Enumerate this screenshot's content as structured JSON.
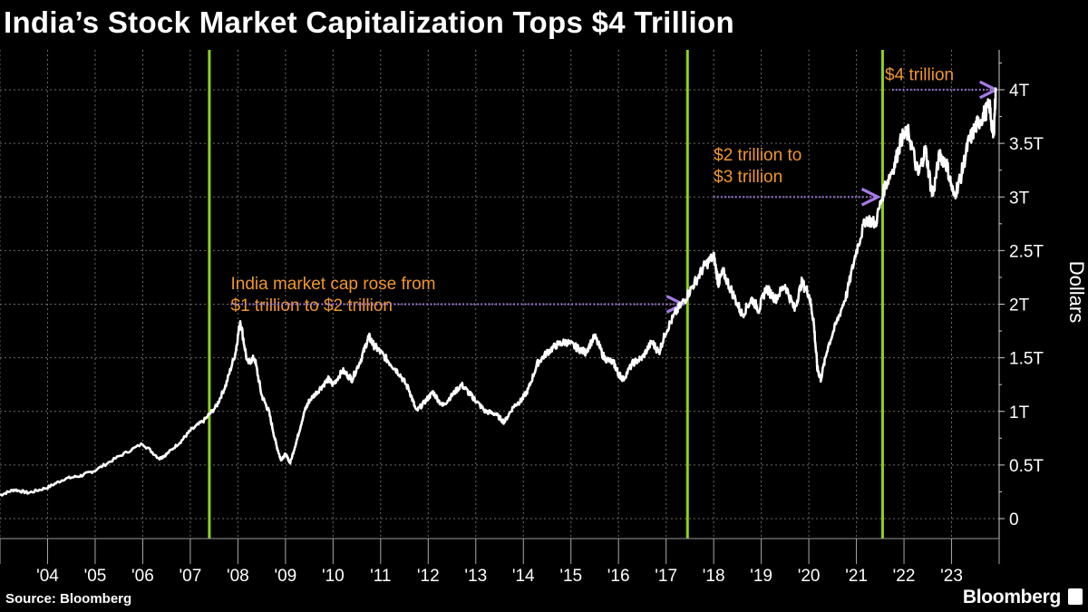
{
  "title": "India’s Stock Market Capitalization Tops $4 Trillion",
  "source": "Source: Bloomberg",
  "brand": "Bloomberg",
  "colors": {
    "line": "#ffffff",
    "milestone": "#8cd21e",
    "annotation": "#f0962d",
    "arrow": "#a57be6",
    "grid": "#6a6a6a"
  },
  "chart_data": {
    "type": "line",
    "title": "India’s Stock Market Capitalization Tops $4 Trillion",
    "ylabel": "Dollars",
    "xlabel": "",
    "ylim": [
      0,
      4.3
    ],
    "yticks": [
      0,
      0.5,
      1,
      1.5,
      2,
      2.5,
      3,
      3.5,
      4
    ],
    "ytick_labels": [
      "0",
      "0.5T",
      "1T",
      "1.5T",
      "2T",
      "2.5T",
      "3T",
      "3.5T",
      "4T"
    ],
    "xlim": [
      2003.0,
      2024.0
    ],
    "xtick_labels": [
      "'04",
      "'05",
      "'06",
      "'07",
      "'08",
      "'09",
      "'10",
      "'11",
      "'12",
      "'13",
      "'14",
      "'15",
      "'16",
      "'17",
      "'18",
      "'19",
      "'20",
      "'21",
      "'22",
      "'23"
    ],
    "grid": true,
    "series": [
      {
        "unit": "trillion USD",
        "x": [
          2003.0,
          2003.3,
          2003.6,
          2004.0,
          2004.35,
          2004.7,
          2005.0,
          2005.5,
          2006.0,
          2006.35,
          2006.5,
          2006.8,
          2007.0,
          2007.3,
          2007.55,
          2007.75,
          2007.95,
          2008.05,
          2008.2,
          2008.35,
          2008.5,
          2008.65,
          2008.8,
          2008.9,
          2009.0,
          2009.1,
          2009.25,
          2009.4,
          2009.5,
          2009.7,
          2009.9,
          2010.0,
          2010.2,
          2010.4,
          2010.6,
          2010.75,
          2010.85,
          2011.0,
          2011.2,
          2011.4,
          2011.6,
          2011.75,
          2011.95,
          2012.1,
          2012.3,
          2012.5,
          2012.7,
          2012.9,
          2013.0,
          2013.2,
          2013.4,
          2013.6,
          2013.8,
          2013.95,
          2014.1,
          2014.3,
          2014.5,
          2014.7,
          2014.9,
          2015.1,
          2015.3,
          2015.5,
          2015.7,
          2015.9,
          2016.0,
          2016.1,
          2016.3,
          2016.5,
          2016.7,
          2016.85,
          2017.0,
          2017.2,
          2017.4,
          2017.6,
          2017.8,
          2018.0,
          2018.1,
          2018.2,
          2018.4,
          2018.6,
          2018.8,
          2018.95,
          2019.1,
          2019.3,
          2019.5,
          2019.7,
          2019.85,
          2020.0,
          2020.1,
          2020.18,
          2020.25,
          2020.4,
          2020.6,
          2020.8,
          2021.0,
          2021.2,
          2021.4,
          2021.6,
          2021.8,
          2021.95,
          2022.1,
          2022.3,
          2022.45,
          2022.6,
          2022.75,
          2022.9,
          2023.05,
          2023.2,
          2023.35,
          2023.5,
          2023.65,
          2023.8,
          2023.88,
          2023.93
        ],
        "values": [
          0.22,
          0.27,
          0.24,
          0.29,
          0.37,
          0.4,
          0.45,
          0.58,
          0.7,
          0.56,
          0.6,
          0.72,
          0.82,
          0.92,
          1.05,
          1.25,
          1.55,
          1.85,
          1.45,
          1.5,
          1.15,
          1.0,
          0.7,
          0.55,
          0.6,
          0.52,
          0.75,
          1.0,
          1.1,
          1.2,
          1.3,
          1.25,
          1.38,
          1.3,
          1.5,
          1.7,
          1.62,
          1.55,
          1.45,
          1.35,
          1.2,
          1.0,
          1.1,
          1.18,
          1.05,
          1.15,
          1.25,
          1.15,
          1.1,
          1.0,
          0.98,
          0.9,
          1.05,
          1.1,
          1.2,
          1.45,
          1.55,
          1.62,
          1.65,
          1.6,
          1.55,
          1.7,
          1.5,
          1.45,
          1.35,
          1.3,
          1.45,
          1.5,
          1.65,
          1.55,
          1.75,
          1.92,
          2.05,
          2.2,
          2.35,
          2.45,
          2.2,
          2.3,
          2.1,
          1.9,
          2.05,
          1.95,
          2.15,
          2.05,
          2.18,
          1.95,
          2.2,
          2.1,
          1.85,
          1.4,
          1.3,
          1.6,
          1.85,
          2.1,
          2.5,
          2.8,
          2.75,
          3.1,
          3.3,
          3.55,
          3.6,
          3.2,
          3.45,
          3.0,
          3.4,
          3.3,
          3.0,
          3.2,
          3.5,
          3.65,
          3.75,
          3.85,
          3.55,
          4.0
        ]
      }
    ],
    "milestones": [
      {
        "x": 2007.4,
        "label": ""
      },
      {
        "x": 2017.45,
        "label": ""
      },
      {
        "x": 2021.55,
        "label": ""
      }
    ],
    "annotations": [
      {
        "lines": [
          "India market cap rose from",
          "$1 trillion to $2 trillion"
        ],
        "x": 2007.85,
        "y": 2.2,
        "arrow_from": 2007.85,
        "arrow_to": 2017.35,
        "arrow_y": 2.0
      },
      {
        "lines": [
          "$2 trillion to",
          "$3 trillion"
        ],
        "x": 2018.0,
        "y": 3.4,
        "arrow_from": 2018.0,
        "arrow_to": 2021.45,
        "arrow_y": 3.0
      },
      {
        "lines": [
          "$4 trillion"
        ],
        "x": 2021.6,
        "y": 4.15,
        "arrow_from": 2021.75,
        "arrow_to": 2023.93,
        "arrow_y": 4.0
      }
    ]
  }
}
